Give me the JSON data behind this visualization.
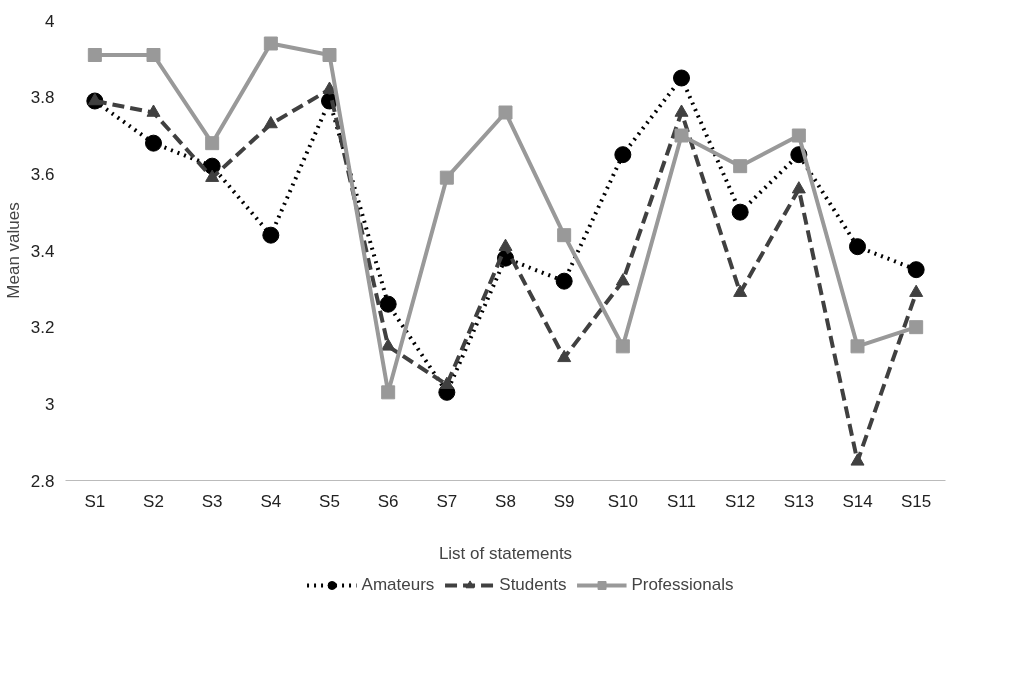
{
  "chart_data": {
    "type": "line",
    "xlabel": "List of statements",
    "ylabel": "Mean values",
    "categories": [
      "S1",
      "S2",
      "S3",
      "S4",
      "S5",
      "S6",
      "S7",
      "S8",
      "S9",
      "S10",
      "S11",
      "S12",
      "S13",
      "S14",
      "S15"
    ],
    "ylim": [
      2.8,
      4
    ],
    "yticks": [
      2.8,
      3,
      3.2,
      3.4,
      3.6,
      3.8,
      4
    ],
    "grid": false,
    "legend": "bottom",
    "series": [
      {
        "name": "Amateurs",
        "color": "#000000",
        "marker": "circle",
        "line_style": "dotted",
        "values": [
          3.79,
          3.68,
          3.62,
          3.44,
          3.79,
          3.26,
          3.03,
          3.38,
          3.32,
          3.65,
          3.85,
          3.5,
          3.65,
          3.41,
          3.35
        ]
      },
      {
        "name": "Students",
        "color": "#404040",
        "marker": "triangle",
        "line_style": "dashed",
        "values": [
          3.79,
          3.76,
          3.59,
          3.73,
          3.82,
          3.15,
          3.05,
          3.41,
          3.12,
          3.32,
          3.76,
          3.29,
          3.56,
          2.85,
          3.29
        ]
      },
      {
        "name": "Professionals",
        "color": "#999999",
        "marker": "square",
        "line_style": "solid",
        "values": [
          3.91,
          3.91,
          3.68,
          3.94,
          3.91,
          3.03,
          3.59,
          3.76,
          3.44,
          3.15,
          3.7,
          3.62,
          3.7,
          3.15,
          3.2
        ]
      }
    ]
  }
}
